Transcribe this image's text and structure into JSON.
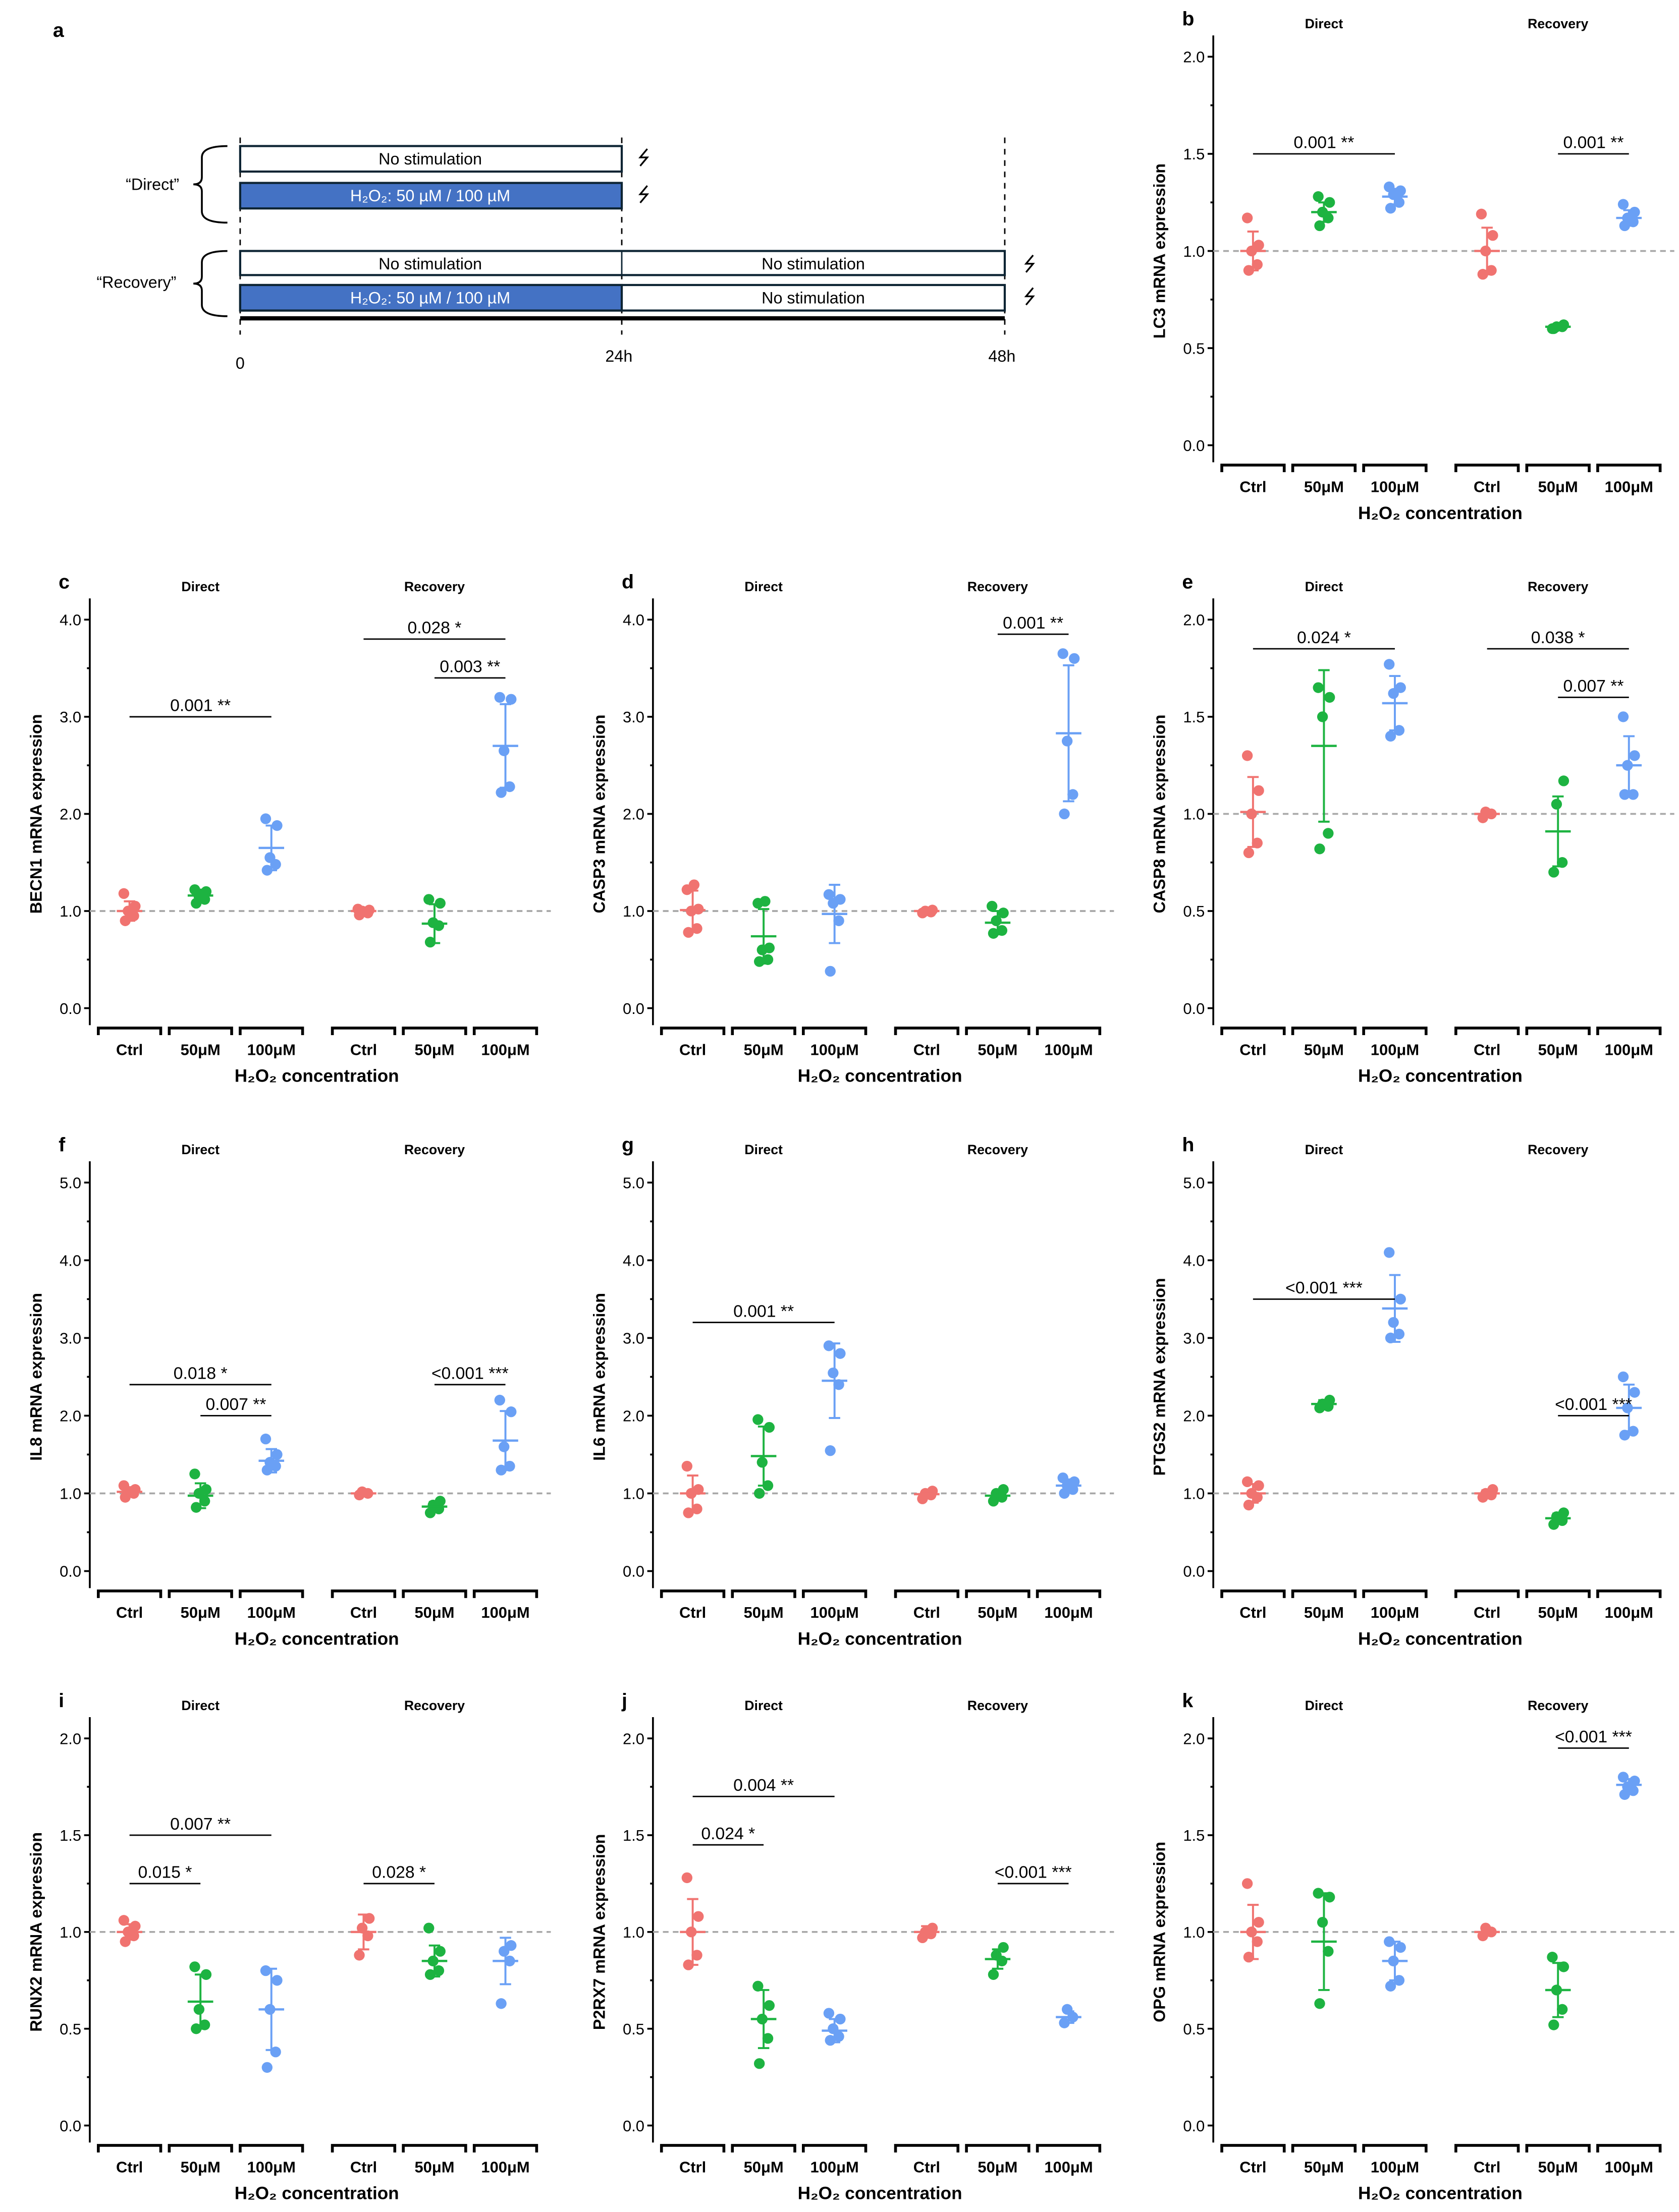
{
  "colors": {
    "ctrl": "#F07370",
    "50": "#1DB341",
    "100": "#6AA0F5",
    "bar_blue": "#4472C4",
    "dashed": "#A8A8A8"
  },
  "schematic": {
    "letter": "a",
    "direct_label": "“Direct”",
    "recovery_label": "“Recovery”",
    "no_stim": "No stimulation",
    "h2o2": "H₂O₂: 50 µM / 100 µM",
    "times": [
      "0",
      "24h",
      "48h"
    ],
    "harvest_icon": "lightning-icon"
  },
  "chart_data": [
    {
      "letter": "b",
      "type": "scatter",
      "ylabel": "LC3 mRNA expression",
      "ymax": 2.0,
      "ticks": [
        "0.0",
        "0.5",
        "1.0",
        "1.5",
        "2.0"
      ],
      "step": 0.5,
      "groups_header": [
        "Direct",
        "Recovery"
      ],
      "categories": [
        "Ctrl",
        "50μM",
        "100μM",
        "Ctrl",
        "50μM",
        "100μM"
      ],
      "xlabel": "H₂O₂ concentration",
      "series": [
        {
          "points": [
            0.9,
            0.93,
            1.0,
            1.03,
            1.17
          ],
          "mean": 1.0,
          "sd": 0.1
        },
        {
          "points": [
            1.13,
            1.17,
            1.2,
            1.25,
            1.28
          ],
          "mean": 1.2,
          "sd": 0.05
        },
        {
          "points": [
            1.22,
            1.25,
            1.29,
            1.31,
            1.33
          ],
          "mean": 1.28,
          "sd": 0.04
        },
        {
          "points": [
            0.88,
            0.9,
            1.0,
            1.08,
            1.19
          ],
          "mean": 1.0,
          "sd": 0.12
        },
        {
          "points": [
            0.6,
            0.61,
            0.61,
            0.62,
            0.6
          ],
          "mean": 0.61,
          "sd": 0.01
        },
        {
          "points": [
            1.13,
            1.15,
            1.17,
            1.2,
            1.24
          ],
          "mean": 1.17,
          "sd": 0.04
        }
      ],
      "annotations": [
        {
          "from": 0,
          "to": 2,
          "y": 1.5,
          "text": "0.001 **"
        },
        {
          "from": 4,
          "to": 5,
          "y": 1.5,
          "text": "0.001 **"
        }
      ]
    },
    {
      "letter": "c",
      "type": "scatter",
      "ylabel": "BECN1 mRNA expression",
      "ymax": 4.0,
      "ticks": [
        "0.0",
        "1.0",
        "2.0",
        "3.0",
        "4.0"
      ],
      "step": 1.0,
      "groups_header": [
        "Direct",
        "Recovery"
      ],
      "categories": [
        "Ctrl",
        "50μM",
        "100μM",
        "Ctrl",
        "50μM",
        "100μM"
      ],
      "xlabel": "H₂O₂ concentration",
      "series": [
        {
          "points": [
            0.9,
            0.95,
            1.0,
            1.05,
            1.18
          ],
          "mean": 1.0,
          "sd": 0.1
        },
        {
          "points": [
            1.08,
            1.12,
            1.15,
            1.2,
            1.22
          ],
          "mean": 1.16,
          "sd": 0.06
        },
        {
          "points": [
            1.42,
            1.48,
            1.55,
            1.88,
            1.95
          ],
          "mean": 1.65,
          "sd": 0.23
        },
        {
          "points": [
            0.96,
            0.98,
            1.0,
            1.01,
            1.02
          ],
          "mean": 1.0,
          "sd": 0.02
        },
        {
          "points": [
            0.68,
            0.85,
            0.88,
            1.08,
            1.12
          ],
          "mean": 0.87,
          "sd": 0.2
        },
        {
          "points": [
            2.22,
            2.28,
            2.65,
            3.18,
            3.2
          ],
          "mean": 2.7,
          "sd": 0.43
        }
      ],
      "annotations": [
        {
          "from": 0,
          "to": 2,
          "y": 3.0,
          "text": "0.001 **"
        },
        {
          "from": 3,
          "to": 5,
          "y": 3.8,
          "text": "0.028 *"
        },
        {
          "from": 4,
          "to": 5,
          "y": 3.4,
          "text": "0.003 **"
        }
      ]
    },
    {
      "letter": "d",
      "type": "scatter",
      "ylabel": "CASP3 mRNA expression",
      "ymax": 4.0,
      "ticks": [
        "0.0",
        "1.0",
        "2.0",
        "3.0",
        "4.0"
      ],
      "step": 1.0,
      "groups_header": [
        "Direct",
        "Recovery"
      ],
      "categories": [
        "Ctrl",
        "50μM",
        "100μM",
        "Ctrl",
        "50μM",
        "100μM"
      ],
      "xlabel": "H₂O₂ concentration",
      "series": [
        {
          "points": [
            0.78,
            0.82,
            1.0,
            1.02,
            1.22,
            1.27
          ],
          "mean": 1.01,
          "sd": 0.2
        },
        {
          "points": [
            0.48,
            0.5,
            0.6,
            0.62,
            1.08,
            1.1
          ],
          "mean": 0.74,
          "sd": 0.28
        },
        {
          "points": [
            0.38,
            0.9,
            1.08,
            1.12,
            1.17
          ],
          "mean": 0.97,
          "sd": 0.3
        },
        {
          "points": [
            0.98,
            0.99,
            1.0,
            1.01
          ],
          "mean": 1.0,
          "sd": 0.01
        },
        {
          "points": [
            0.77,
            0.8,
            0.9,
            0.98,
            1.05
          ],
          "mean": 0.88,
          "sd": 0.12
        },
        {
          "points": [
            2.0,
            2.2,
            2.75,
            3.6,
            3.65
          ],
          "mean": 2.83,
          "sd": 0.7
        }
      ],
      "annotations": [
        {
          "from": 4,
          "to": 5,
          "y": 3.85,
          "text": "0.001 **"
        }
      ]
    },
    {
      "letter": "e",
      "type": "scatter",
      "ylabel": "CASP8 mRNA expression",
      "ymax": 2.0,
      "ticks": [
        "0.0",
        "0.5",
        "1.0",
        "1.5",
        "2.0"
      ],
      "step": 0.5,
      "groups_header": [
        "Direct",
        "Recovery"
      ],
      "categories": [
        "Ctrl",
        "50μM",
        "100μM",
        "Ctrl",
        "50μM",
        "100μM"
      ],
      "xlabel": "H₂O₂ concentration",
      "series": [
        {
          "points": [
            0.8,
            0.85,
            1.0,
            1.12,
            1.3
          ],
          "mean": 1.01,
          "sd": 0.18
        },
        {
          "points": [
            0.82,
            0.9,
            1.5,
            1.6,
            1.65
          ],
          "mean": 1.35,
          "sd": 0.39
        },
        {
          "points": [
            1.4,
            1.43,
            1.62,
            1.65,
            1.77
          ],
          "mean": 1.57,
          "sd": 0.14
        },
        {
          "points": [
            0.98,
            1.0,
            1.01
          ],
          "mean": 1.0,
          "sd": 0.01
        },
        {
          "points": [
            0.7,
            0.75,
            1.05,
            1.17
          ],
          "mean": 0.91,
          "sd": 0.18
        },
        {
          "points": [
            1.1,
            1.1,
            1.25,
            1.3,
            1.5
          ],
          "mean": 1.25,
          "sd": 0.15
        }
      ],
      "annotations": [
        {
          "from": 0,
          "to": 2,
          "y": 1.85,
          "text": "0.024 *"
        },
        {
          "from": 3,
          "to": 5,
          "y": 1.85,
          "text": "0.038 *"
        },
        {
          "from": 4,
          "to": 5,
          "y": 1.6,
          "text": "0.007 **"
        }
      ]
    },
    {
      "letter": "f",
      "type": "scatter",
      "ylabel": "IL8 mRNA expression",
      "ymax": 5.0,
      "ticks": [
        "0.0",
        "1.0",
        "2.0",
        "3.0",
        "4.0",
        "5.0"
      ],
      "step": 1.0,
      "groups_header": [
        "Direct",
        "Recovery"
      ],
      "categories": [
        "Ctrl",
        "50μM",
        "100μM",
        "Ctrl",
        "50μM",
        "100μM"
      ],
      "xlabel": "H₂O₂ concentration",
      "series": [
        {
          "points": [
            0.95,
            1.0,
            1.02,
            1.05,
            1.1
          ],
          "mean": 1.02,
          "sd": 0.06
        },
        {
          "points": [
            0.82,
            0.9,
            1.0,
            1.05,
            1.25
          ],
          "mean": 0.97,
          "sd": 0.16
        },
        {
          "points": [
            1.3,
            1.35,
            1.4,
            1.5,
            1.7
          ],
          "mean": 1.42,
          "sd": 0.15
        },
        {
          "points": [
            0.98,
            1.0,
            1.02
          ],
          "mean": 1.0,
          "sd": 0.02
        },
        {
          "points": [
            0.75,
            0.8,
            0.85,
            0.9
          ],
          "mean": 0.83,
          "sd": 0.06
        },
        {
          "points": [
            1.3,
            1.35,
            1.6,
            2.05,
            2.2
          ],
          "mean": 1.68,
          "sd": 0.38
        }
      ],
      "annotations": [
        {
          "from": 0,
          "to": 2,
          "y": 2.4,
          "text": "0.018 *"
        },
        {
          "from": 1,
          "to": 2,
          "y": 2.0,
          "text": "0.007 **"
        },
        {
          "from": 4,
          "to": 5,
          "y": 2.4,
          "text": "<0.001 ***"
        }
      ]
    },
    {
      "letter": "g",
      "type": "scatter",
      "ylabel": "IL6 mRNA expression",
      "ymax": 5.0,
      "ticks": [
        "0.0",
        "1.0",
        "2.0",
        "3.0",
        "4.0",
        "5.0"
      ],
      "step": 1.0,
      "groups_header": [
        "Direct",
        "Recovery"
      ],
      "categories": [
        "Ctrl",
        "50μM",
        "100μM",
        "Ctrl",
        "50μM",
        "100μM"
      ],
      "xlabel": "H₂O₂ concentration",
      "series": [
        {
          "points": [
            0.75,
            0.8,
            1.0,
            1.05,
            1.35
          ],
          "mean": 1.0,
          "sd": 0.23
        },
        {
          "points": [
            1.0,
            1.1,
            1.4,
            1.85,
            1.95
          ],
          "mean": 1.48,
          "sd": 0.38
        },
        {
          "points": [
            1.55,
            2.4,
            2.55,
            2.8,
            2.9
          ],
          "mean": 2.45,
          "sd": 0.48
        },
        {
          "points": [
            0.93,
            0.98,
            1.0,
            1.03
          ],
          "mean": 0.99,
          "sd": 0.04
        },
        {
          "points": [
            0.9,
            0.95,
            1.0,
            1.05
          ],
          "mean": 0.97,
          "sd": 0.05
        },
        {
          "points": [
            1.0,
            1.05,
            1.1,
            1.15,
            1.2
          ],
          "mean": 1.1,
          "sd": 0.08
        }
      ],
      "annotations": [
        {
          "from": 0,
          "to": 2,
          "y": 3.2,
          "text": "0.001 **"
        }
      ]
    },
    {
      "letter": "h",
      "type": "scatter",
      "ylabel": "PTGS2 mRNA expression",
      "ymax": 5.0,
      "ticks": [
        "0.0",
        "1.0",
        "2.0",
        "3.0",
        "4.0",
        "5.0"
      ],
      "step": 1.0,
      "groups_header": [
        "Direct",
        "Recovery"
      ],
      "categories": [
        "Ctrl",
        "50μM",
        "100μM",
        "Ctrl",
        "50μM",
        "100μM"
      ],
      "xlabel": "H₂O₂ concentration",
      "series": [
        {
          "points": [
            0.85,
            0.95,
            1.0,
            1.1,
            1.15
          ],
          "mean": 1.0,
          "sd": 0.12
        },
        {
          "points": [
            2.1,
            2.12,
            2.15,
            2.2
          ],
          "mean": 2.15,
          "sd": 0.05
        },
        {
          "points": [
            3.0,
            3.05,
            3.2,
            3.5,
            4.1
          ],
          "mean": 3.38,
          "sd": 0.43
        },
        {
          "points": [
            0.95,
            0.98,
            1.0,
            1.05
          ],
          "mean": 1.0,
          "sd": 0.04
        },
        {
          "points": [
            0.6,
            0.65,
            0.7,
            0.75
          ],
          "mean": 0.68,
          "sd": 0.06
        },
        {
          "points": [
            1.75,
            1.8,
            2.1,
            2.3,
            2.5
          ],
          "mean": 2.1,
          "sd": 0.3
        }
      ],
      "annotations": [
        {
          "from": 0,
          "to": 2,
          "y": 3.5,
          "text": "<0.001 ***"
        },
        {
          "from": 4,
          "to": 5,
          "y": 2.0,
          "text": "<0.001 ***"
        }
      ]
    },
    {
      "letter": "i",
      "type": "scatter",
      "ylabel": "RUNX2 mRNA expression",
      "ymax": 2.0,
      "ticks": [
        "0.0",
        "0.5",
        "1.0",
        "1.5",
        "2.0"
      ],
      "step": 0.5,
      "groups_header": [
        "Direct",
        "Recovery"
      ],
      "categories": [
        "Ctrl",
        "50μM",
        "100μM",
        "Ctrl",
        "50μM",
        "100μM"
      ],
      "xlabel": "H₂O₂ concentration",
      "series": [
        {
          "points": [
            0.95,
            0.98,
            1.0,
            1.03,
            1.06
          ],
          "mean": 1.0,
          "sd": 0.04
        },
        {
          "points": [
            0.5,
            0.52,
            0.6,
            0.78,
            0.82
          ],
          "mean": 0.64,
          "sd": 0.14
        },
        {
          "points": [
            0.3,
            0.38,
            0.6,
            0.75,
            0.8
          ],
          "mean": 0.6,
          "sd": 0.21
        },
        {
          "points": [
            0.88,
            0.98,
            1.02,
            1.07
          ],
          "mean": 1.0,
          "sd": 0.09
        },
        {
          "points": [
            0.78,
            0.8,
            0.85,
            0.9,
            1.02
          ],
          "mean": 0.85,
          "sd": 0.08
        },
        {
          "points": [
            0.63,
            0.85,
            0.9,
            0.93
          ],
          "mean": 0.85,
          "sd": 0.12
        }
      ],
      "annotations": [
        {
          "from": 0,
          "to": 2,
          "y": 1.5,
          "text": "0.007 **"
        },
        {
          "from": 0,
          "to": 1,
          "y": 1.25,
          "text": "0.015 *"
        },
        {
          "from": 3,
          "to": 4,
          "y": 1.25,
          "text": "0.028 *"
        }
      ]
    },
    {
      "letter": "j",
      "type": "scatter",
      "ylabel": "P2RX7 mRNA expression",
      "ymax": 2.0,
      "ticks": [
        "0.0",
        "0.5",
        "1.0",
        "1.5",
        "2.0"
      ],
      "step": 0.5,
      "groups_header": [
        "Direct",
        "Recovery"
      ],
      "categories": [
        "Ctrl",
        "50μM",
        "100μM",
        "Ctrl",
        "50μM",
        "100μM"
      ],
      "xlabel": "H₂O₂ concentration",
      "series": [
        {
          "points": [
            0.83,
            0.88,
            1.0,
            1.08,
            1.28
          ],
          "mean": 1.0,
          "sd": 0.17
        },
        {
          "points": [
            0.32,
            0.45,
            0.55,
            0.62,
            0.72
          ],
          "mean": 0.55,
          "sd": 0.15
        },
        {
          "points": [
            0.44,
            0.46,
            0.5,
            0.55,
            0.58
          ],
          "mean": 0.49,
          "sd": 0.06
        },
        {
          "points": [
            0.97,
            0.99,
            1.0,
            1.02
          ],
          "mean": 1.0,
          "sd": 0.03
        },
        {
          "points": [
            0.78,
            0.85,
            0.88,
            0.92
          ],
          "mean": 0.86,
          "sd": 0.05
        },
        {
          "points": [
            0.53,
            0.56,
            0.6
          ],
          "mean": 0.56,
          "sd": 0.03
        }
      ],
      "annotations": [
        {
          "from": 0,
          "to": 2,
          "y": 1.7,
          "text": "0.004 **"
        },
        {
          "from": 0,
          "to": 1,
          "y": 1.45,
          "text": "0.024 *"
        },
        {
          "from": 4,
          "to": 5,
          "y": 1.25,
          "text": "<0.001 ***"
        }
      ]
    },
    {
      "letter": "k",
      "type": "scatter",
      "ylabel": "OPG mRNA expression",
      "ymax": 2.0,
      "ticks": [
        "0.0",
        "0.5",
        "1.0",
        "1.5",
        "2.0"
      ],
      "step": 0.5,
      "groups_header": [
        "Direct",
        "Recovery"
      ],
      "categories": [
        "Ctrl",
        "50μM",
        "100μM",
        "Ctrl",
        "50μM",
        "100μM"
      ],
      "xlabel": "H₂O₂ concentration",
      "series": [
        {
          "points": [
            0.87,
            0.95,
            1.0,
            1.05,
            1.25
          ],
          "mean": 1.0,
          "sd": 0.14
        },
        {
          "points": [
            0.63,
            0.9,
            1.05,
            1.18,
            1.2
          ],
          "mean": 0.95,
          "sd": 0.25
        },
        {
          "points": [
            0.72,
            0.75,
            0.85,
            0.92,
            0.95
          ],
          "mean": 0.85,
          "sd": 0.1
        },
        {
          "points": [
            0.98,
            1.0,
            1.02
          ],
          "mean": 1.0,
          "sd": 0.02
        },
        {
          "points": [
            0.52,
            0.6,
            0.7,
            0.82,
            0.87
          ],
          "mean": 0.7,
          "sd": 0.14
        },
        {
          "points": [
            1.71,
            1.73,
            1.75,
            1.78,
            1.8
          ],
          "mean": 1.76,
          "sd": 0.03
        }
      ],
      "annotations": [
        {
          "from": 4,
          "to": 5,
          "y": 1.95,
          "text": "<0.001 ***"
        }
      ]
    }
  ]
}
